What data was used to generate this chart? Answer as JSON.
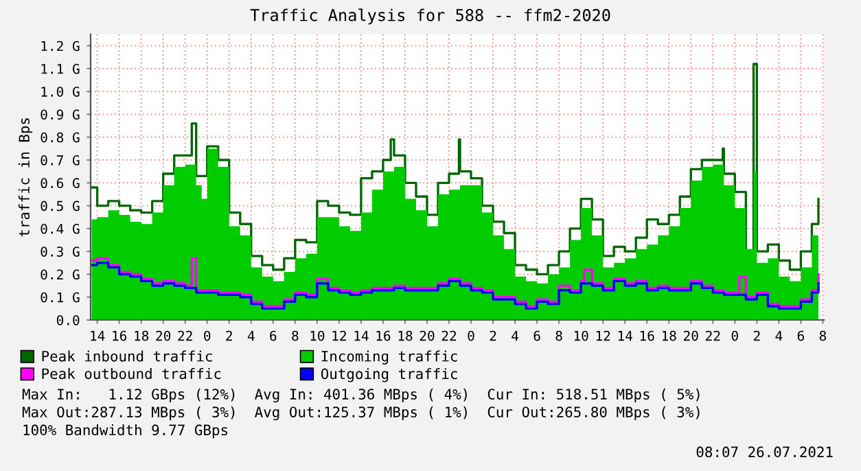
{
  "chart_data": {
    "type": "step",
    "title": "Traffic Analysis for 588 -- ffm2-2020",
    "ylabel": "traffic in Bps",
    "xlim": [
      "2021-07-23T13:24",
      "2021-07-26T08:06"
    ],
    "ylim": [
      0,
      1.25
    ],
    "xticks": [
      {
        "value": "2021-07-23T14:00",
        "label": "14"
      },
      {
        "value": "2021-07-23T16:00",
        "label": "16"
      },
      {
        "value": "2021-07-23T18:00",
        "label": "18"
      },
      {
        "value": "2021-07-23T20:00",
        "label": "20"
      },
      {
        "value": "2021-07-23T22:00",
        "label": "22"
      },
      {
        "value": "2021-07-24T00:00",
        "label": "0"
      },
      {
        "value": "2021-07-24T02:00",
        "label": "2"
      },
      {
        "value": "2021-07-24T04:00",
        "label": "4"
      },
      {
        "value": "2021-07-24T06:00",
        "label": "6"
      },
      {
        "value": "2021-07-24T08:00",
        "label": "8"
      },
      {
        "value": "2021-07-24T10:00",
        "label": "10"
      },
      {
        "value": "2021-07-24T12:00",
        "label": "12"
      },
      {
        "value": "2021-07-24T14:00",
        "label": "14"
      },
      {
        "value": "2021-07-24T16:00",
        "label": "16"
      },
      {
        "value": "2021-07-24T18:00",
        "label": "18"
      },
      {
        "value": "2021-07-24T20:00",
        "label": "20"
      },
      {
        "value": "2021-07-24T22:00",
        "label": "22"
      },
      {
        "value": "2021-07-25T00:00",
        "label": "0"
      },
      {
        "value": "2021-07-25T02:00",
        "label": "2"
      },
      {
        "value": "2021-07-25T04:00",
        "label": "4"
      },
      {
        "value": "2021-07-25T06:00",
        "label": "6"
      },
      {
        "value": "2021-07-25T08:00",
        "label": "8"
      },
      {
        "value": "2021-07-25T10:00",
        "label": "10"
      },
      {
        "value": "2021-07-25T12:00",
        "label": "12"
      },
      {
        "value": "2021-07-25T14:00",
        "label": "14"
      },
      {
        "value": "2021-07-25T16:00",
        "label": "16"
      },
      {
        "value": "2021-07-25T18:00",
        "label": "18"
      },
      {
        "value": "2021-07-25T20:00",
        "label": "20"
      },
      {
        "value": "2021-07-25T22:00",
        "label": "22"
      },
      {
        "value": "2021-07-26T00:00",
        "label": "0"
      },
      {
        "value": "2021-07-26T02:00",
        "label": "2"
      },
      {
        "value": "2021-07-26T04:00",
        "label": "4"
      },
      {
        "value": "2021-07-26T06:00",
        "label": "6"
      },
      {
        "value": "2021-07-26T08:00",
        "label": "8"
      }
    ],
    "yticks": [
      {
        "value": 0,
        "label": "0.0"
      },
      {
        "value": 0.1,
        "label": "0.1 G"
      },
      {
        "value": 0.2,
        "label": "0.2 G"
      },
      {
        "value": 0.3,
        "label": "0.3 G"
      },
      {
        "value": 0.4,
        "label": "0.4 G"
      },
      {
        "value": 0.5,
        "label": "0.5 G"
      },
      {
        "value": 0.6,
        "label": "0.6 G"
      },
      {
        "value": 0.7,
        "label": "0.7 G"
      },
      {
        "value": 0.8,
        "label": "0.8 G"
      },
      {
        "value": 0.9,
        "label": "0.9 G"
      },
      {
        "value": 1.0,
        "label": "1.0 G"
      },
      {
        "value": 1.1,
        "label": "1.1 G"
      },
      {
        "value": 1.2,
        "label": "1.2 G"
      }
    ],
    "grid": true,
    "legend": "bottom",
    "series": [
      {
        "name": "Peak inbound traffic",
        "color": "#006600",
        "x": [
          "2021-07-23T13:30",
          "2021-07-23T14:00",
          "2021-07-23T15:00",
          "2021-07-23T16:00",
          "2021-07-23T17:00",
          "2021-07-23T18:00",
          "2021-07-23T19:00",
          "2021-07-23T20:00",
          "2021-07-23T21:00",
          "2021-07-23T22:00",
          "2021-07-23T22:36",
          "2021-07-23T23:00",
          "2021-07-24T00:00",
          "2021-07-24T01:00",
          "2021-07-24T02:00",
          "2021-07-24T03:00",
          "2021-07-24T04:00",
          "2021-07-24T05:00",
          "2021-07-24T06:00",
          "2021-07-24T07:00",
          "2021-07-24T08:00",
          "2021-07-24T09:00",
          "2021-07-24T10:00",
          "2021-07-24T11:00",
          "2021-07-24T12:00",
          "2021-07-24T13:00",
          "2021-07-24T14:00",
          "2021-07-24T15:00",
          "2021-07-24T16:00",
          "2021-07-24T16:42",
          "2021-07-24T17:00",
          "2021-07-24T18:00",
          "2021-07-24T19:00",
          "2021-07-24T20:00",
          "2021-07-24T21:00",
          "2021-07-24T22:00",
          "2021-07-24T22:54",
          "2021-07-24T23:00",
          "2021-07-25T00:00",
          "2021-07-25T01:00",
          "2021-07-25T02:00",
          "2021-07-25T03:00",
          "2021-07-25T04:00",
          "2021-07-25T05:00",
          "2021-07-25T06:00",
          "2021-07-25T07:00",
          "2021-07-25T08:00",
          "2021-07-25T09:00",
          "2021-07-25T10:00",
          "2021-07-25T11:00",
          "2021-07-25T12:00",
          "2021-07-25T13:00",
          "2021-07-25T14:00",
          "2021-07-25T15:00",
          "2021-07-25T16:00",
          "2021-07-25T17:00",
          "2021-07-25T18:00",
          "2021-07-25T19:00",
          "2021-07-25T20:00",
          "2021-07-25T21:00",
          "2021-07-25T22:00",
          "2021-07-25T22:54",
          "2021-07-25T23:00",
          "2021-07-26T00:00",
          "2021-07-26T01:00",
          "2021-07-26T01:42",
          "2021-07-26T02:00",
          "2021-07-26T03:00",
          "2021-07-26T04:00",
          "2021-07-26T05:00",
          "2021-07-26T06:00",
          "2021-07-26T07:00",
          "2021-07-26T07:36"
        ],
        "values": [
          0.58,
          0.5,
          0.52,
          0.5,
          0.48,
          0.47,
          0.52,
          0.64,
          0.72,
          0.72,
          0.86,
          0.63,
          0.76,
          0.7,
          0.47,
          0.42,
          0.28,
          0.24,
          0.22,
          0.27,
          0.35,
          0.34,
          0.52,
          0.5,
          0.47,
          0.46,
          0.62,
          0.65,
          0.7,
          0.79,
          0.72,
          0.6,
          0.54,
          0.46,
          0.6,
          0.64,
          0.79,
          0.65,
          0.62,
          0.5,
          0.43,
          0.38,
          0.24,
          0.22,
          0.2,
          0.24,
          0.3,
          0.4,
          0.53,
          0.44,
          0.28,
          0.32,
          0.3,
          0.36,
          0.44,
          0.42,
          0.46,
          0.54,
          0.66,
          0.7,
          0.7,
          0.75,
          0.64,
          0.56,
          0.3,
          1.12,
          0.3,
          0.33,
          0.26,
          0.22,
          0.3,
          0.42,
          0.53
        ]
      },
      {
        "name": "Incoming traffic",
        "type": "area",
        "color": "#00cc00",
        "x": [
          "2021-07-23T13:30",
          "2021-07-23T14:00",
          "2021-07-23T15:00",
          "2021-07-23T16:00",
          "2021-07-23T17:00",
          "2021-07-23T18:00",
          "2021-07-23T19:00",
          "2021-07-23T20:00",
          "2021-07-23T21:00",
          "2021-07-23T22:00",
          "2021-07-23T23:00",
          "2021-07-23T23:30",
          "2021-07-24T00:00",
          "2021-07-24T01:00",
          "2021-07-24T02:00",
          "2021-07-24T03:00",
          "2021-07-24T04:00",
          "2021-07-24T05:00",
          "2021-07-24T06:00",
          "2021-07-24T07:00",
          "2021-07-24T08:00",
          "2021-07-24T09:00",
          "2021-07-24T10:00",
          "2021-07-24T11:00",
          "2021-07-24T12:00",
          "2021-07-24T13:00",
          "2021-07-24T14:00",
          "2021-07-24T15:00",
          "2021-07-24T16:00",
          "2021-07-24T17:00",
          "2021-07-24T18:00",
          "2021-07-24T19:00",
          "2021-07-24T20:00",
          "2021-07-24T21:00",
          "2021-07-24T22:00",
          "2021-07-24T23:00",
          "2021-07-25T00:00",
          "2021-07-25T01:00",
          "2021-07-25T02:00",
          "2021-07-25T03:00",
          "2021-07-25T04:00",
          "2021-07-25T05:00",
          "2021-07-25T06:00",
          "2021-07-25T07:00",
          "2021-07-25T08:00",
          "2021-07-25T09:00",
          "2021-07-25T10:00",
          "2021-07-25T11:00",
          "2021-07-25T12:00",
          "2021-07-25T13:00",
          "2021-07-25T14:00",
          "2021-07-25T15:00",
          "2021-07-25T16:00",
          "2021-07-25T17:00",
          "2021-07-25T18:00",
          "2021-07-25T19:00",
          "2021-07-25T20:00",
          "2021-07-25T21:00",
          "2021-07-25T22:00",
          "2021-07-25T23:00",
          "2021-07-26T00:00",
          "2021-07-26T01:00",
          "2021-07-26T01:42",
          "2021-07-26T02:00",
          "2021-07-26T03:00",
          "2021-07-26T04:00",
          "2021-07-26T05:00",
          "2021-07-26T06:00",
          "2021-07-26T07:00",
          "2021-07-26T07:36"
        ],
        "values": [
          0.44,
          0.45,
          0.48,
          0.46,
          0.43,
          0.42,
          0.47,
          0.59,
          0.67,
          0.68,
          0.59,
          0.53,
          0.75,
          0.67,
          0.41,
          0.37,
          0.23,
          0.19,
          0.17,
          0.21,
          0.27,
          0.29,
          0.45,
          0.45,
          0.41,
          0.39,
          0.47,
          0.57,
          0.65,
          0.67,
          0.53,
          0.48,
          0.41,
          0.55,
          0.57,
          0.59,
          0.59,
          0.47,
          0.37,
          0.31,
          0.19,
          0.17,
          0.16,
          0.2,
          0.23,
          0.35,
          0.49,
          0.37,
          0.23,
          0.25,
          0.27,
          0.31,
          0.33,
          0.37,
          0.41,
          0.49,
          0.61,
          0.67,
          0.68,
          0.59,
          0.49,
          0.31,
          0.65,
          0.25,
          0.27,
          0.19,
          0.17,
          0.23,
          0.37,
          0.48
        ]
      },
      {
        "name": "Peak outbound traffic",
        "color": "#ff00ff",
        "x": [
          "2021-07-23T13:30",
          "2021-07-23T14:00",
          "2021-07-23T15:00",
          "2021-07-23T16:00",
          "2021-07-23T17:00",
          "2021-07-23T18:00",
          "2021-07-23T19:00",
          "2021-07-23T20:00",
          "2021-07-23T21:00",
          "2021-07-23T22:00",
          "2021-07-23T22:36",
          "2021-07-23T23:00",
          "2021-07-24T00:00",
          "2021-07-24T01:00",
          "2021-07-24T02:00",
          "2021-07-24T03:00",
          "2021-07-24T04:00",
          "2021-07-24T05:00",
          "2021-07-24T06:00",
          "2021-07-24T07:00",
          "2021-07-24T08:00",
          "2021-07-24T09:00",
          "2021-07-24T10:00",
          "2021-07-24T11:00",
          "2021-07-24T12:00",
          "2021-07-24T13:00",
          "2021-07-24T14:00",
          "2021-07-24T15:00",
          "2021-07-24T16:00",
          "2021-07-24T17:00",
          "2021-07-24T18:00",
          "2021-07-24T19:00",
          "2021-07-24T20:00",
          "2021-07-24T21:00",
          "2021-07-24T22:00",
          "2021-07-24T23:00",
          "2021-07-25T00:00",
          "2021-07-25T01:00",
          "2021-07-25T02:00",
          "2021-07-25T03:00",
          "2021-07-25T04:00",
          "2021-07-25T05:00",
          "2021-07-25T06:00",
          "2021-07-25T07:00",
          "2021-07-25T08:00",
          "2021-07-25T09:00",
          "2021-07-25T10:00",
          "2021-07-25T10:18",
          "2021-07-25T11:00",
          "2021-07-25T12:00",
          "2021-07-25T13:00",
          "2021-07-25T14:00",
          "2021-07-25T15:00",
          "2021-07-25T16:00",
          "2021-07-25T17:00",
          "2021-07-25T18:00",
          "2021-07-25T19:00",
          "2021-07-25T20:00",
          "2021-07-25T21:00",
          "2021-07-25T22:00",
          "2021-07-25T23:00",
          "2021-07-26T00:00",
          "2021-07-26T00:24",
          "2021-07-26T01:00",
          "2021-07-26T02:00",
          "2021-07-26T03:00",
          "2021-07-26T04:00",
          "2021-07-26T05:00",
          "2021-07-26T06:00",
          "2021-07-26T07:00",
          "2021-07-26T07:36"
        ],
        "values": [
          0.26,
          0.27,
          0.24,
          0.21,
          0.2,
          0.18,
          0.16,
          0.17,
          0.16,
          0.15,
          0.27,
          0.13,
          0.13,
          0.12,
          0.12,
          0.11,
          0.08,
          0.06,
          0.06,
          0.09,
          0.12,
          0.11,
          0.18,
          0.14,
          0.13,
          0.12,
          0.13,
          0.14,
          0.14,
          0.15,
          0.14,
          0.14,
          0.14,
          0.16,
          0.18,
          0.16,
          0.14,
          0.13,
          0.1,
          0.1,
          0.08,
          0.06,
          0.09,
          0.08,
          0.15,
          0.13,
          0.17,
          0.22,
          0.16,
          0.14,
          0.18,
          0.16,
          0.17,
          0.14,
          0.15,
          0.14,
          0.14,
          0.17,
          0.15,
          0.13,
          0.12,
          0.12,
          0.19,
          0.1,
          0.12,
          0.07,
          0.06,
          0.06,
          0.09,
          0.13,
          0.2
        ]
      },
      {
        "name": "Outgoing traffic",
        "color": "#0000ff",
        "x": [
          "2021-07-23T13:30",
          "2021-07-23T14:00",
          "2021-07-23T15:00",
          "2021-07-23T16:00",
          "2021-07-23T17:00",
          "2021-07-23T18:00",
          "2021-07-23T19:00",
          "2021-07-23T20:00",
          "2021-07-23T21:00",
          "2021-07-23T22:00",
          "2021-07-23T23:00",
          "2021-07-24T00:00",
          "2021-07-24T01:00",
          "2021-07-24T02:00",
          "2021-07-24T03:00",
          "2021-07-24T04:00",
          "2021-07-24T05:00",
          "2021-07-24T06:00",
          "2021-07-24T07:00",
          "2021-07-24T08:00",
          "2021-07-24T09:00",
          "2021-07-24T10:00",
          "2021-07-24T11:00",
          "2021-07-24T12:00",
          "2021-07-24T13:00",
          "2021-07-24T14:00",
          "2021-07-24T15:00",
          "2021-07-24T16:00",
          "2021-07-24T17:00",
          "2021-07-24T18:00",
          "2021-07-24T19:00",
          "2021-07-24T20:00",
          "2021-07-24T21:00",
          "2021-07-24T22:00",
          "2021-07-24T23:00",
          "2021-07-25T00:00",
          "2021-07-25T01:00",
          "2021-07-25T02:00",
          "2021-07-25T03:00",
          "2021-07-25T04:00",
          "2021-07-25T05:00",
          "2021-07-25T06:00",
          "2021-07-25T07:00",
          "2021-07-25T08:00",
          "2021-07-25T09:00",
          "2021-07-25T10:00",
          "2021-07-25T11:00",
          "2021-07-25T12:00",
          "2021-07-25T13:00",
          "2021-07-25T14:00",
          "2021-07-25T15:00",
          "2021-07-25T16:00",
          "2021-07-25T17:00",
          "2021-07-25T18:00",
          "2021-07-25T19:00",
          "2021-07-25T20:00",
          "2021-07-25T21:00",
          "2021-07-25T22:00",
          "2021-07-25T23:00",
          "2021-07-26T00:00",
          "2021-07-26T01:00",
          "2021-07-26T02:00",
          "2021-07-26T03:00",
          "2021-07-26T04:00",
          "2021-07-26T05:00",
          "2021-07-26T06:00",
          "2021-07-26T07:00",
          "2021-07-26T07:36"
        ],
        "values": [
          0.24,
          0.25,
          0.23,
          0.2,
          0.19,
          0.17,
          0.15,
          0.16,
          0.15,
          0.14,
          0.12,
          0.12,
          0.11,
          0.11,
          0.1,
          0.07,
          0.05,
          0.05,
          0.08,
          0.11,
          0.1,
          0.16,
          0.13,
          0.12,
          0.11,
          0.12,
          0.13,
          0.13,
          0.14,
          0.13,
          0.13,
          0.13,
          0.15,
          0.17,
          0.15,
          0.13,
          0.12,
          0.09,
          0.09,
          0.07,
          0.05,
          0.08,
          0.07,
          0.13,
          0.12,
          0.16,
          0.15,
          0.13,
          0.17,
          0.15,
          0.16,
          0.13,
          0.14,
          0.13,
          0.13,
          0.16,
          0.14,
          0.12,
          0.11,
          0.11,
          0.09,
          0.11,
          0.06,
          0.05,
          0.05,
          0.08,
          0.12,
          0.16
        ]
      }
    ],
    "annotations": [
      "Max In:   1.12 GBps (12%)  Avg In: 401.36 MBps ( 4%)  Cur In: 518.51 MBps ( 5%)",
      "Max Out:287.13 MBps ( 3%)  Avg Out:125.37 MBps ( 1%)  Cur Out:265.80 MBps ( 3%)",
      "100% Bandwidth 9.77 GBps",
      "08:07 26.07.2021"
    ]
  }
}
